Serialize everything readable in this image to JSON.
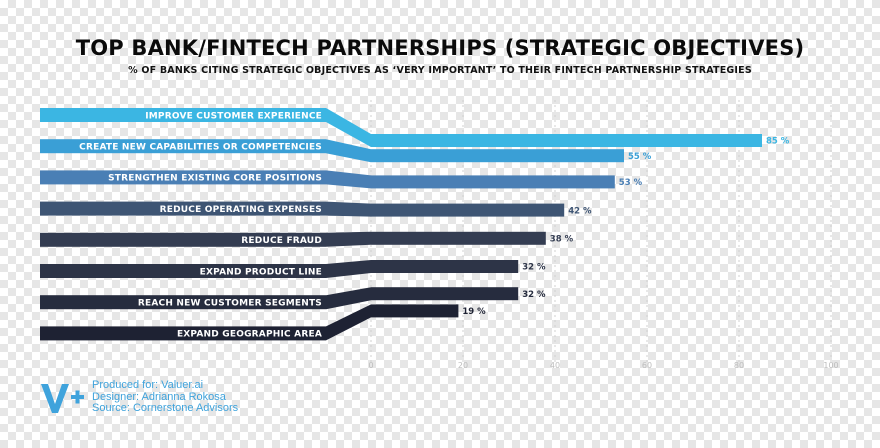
{
  "chart_data": {
    "type": "bar",
    "orientation": "horizontal",
    "title": "TOP BANK/FINTECH PARTNERSHIPS (STRATEGIC OBJECTIVES)",
    "subtitle": "% OF BANKS CITING STRATEGIC OBJECTIVES AS ‘VERY IMPORTANT’ TO THEIR FINTECH PARTNERSHIP STRATEGIES",
    "categories": [
      "IMPROVE CUSTOMER EXPERIENCE",
      "CREATE NEW CAPABILITIES OR COMPETENCIES",
      "STRENGTHEN EXISTING CORE POSITIONS",
      "REDUCE OPERATING EXPENSES",
      "REDUCE FRAUD",
      "EXPAND PRODUCT LINE",
      "REACH NEW CUSTOMER SEGMENTS",
      "EXPAND GEOGRAPHIC AREA"
    ],
    "values": [
      85,
      55,
      53,
      42,
      38,
      32,
      32,
      19
    ],
    "value_labels": [
      "85 %",
      "55 %",
      "53 %",
      "42 %",
      "38 %",
      "32 %",
      "32 %",
      "19 %"
    ],
    "colors": [
      "#3bb6e3",
      "#3a9fd6",
      "#4a7fb5",
      "#3e5574",
      "#343d52",
      "#2d3447",
      "#262c3e",
      "#1e2233"
    ],
    "value_label_colors": [
      "#3bb6e3",
      "#3a9fd6",
      "#4a7fb5",
      "#3e5574",
      "#343d52",
      "#2d3447",
      "#262c3e",
      "#1e2233"
    ],
    "xlim": [
      0,
      100
    ],
    "x_ticks": [
      0,
      20,
      40,
      60,
      80,
      100
    ],
    "grid": true,
    "legend": "none"
  },
  "footer": {
    "logo_text": "V+",
    "logo_color": "#3fa3dc",
    "produced_for": "Produced for: Valuer.ai",
    "designer": "Designer: Adrianna Rokosa",
    "source": "Source: Cornerstone Advisors"
  }
}
